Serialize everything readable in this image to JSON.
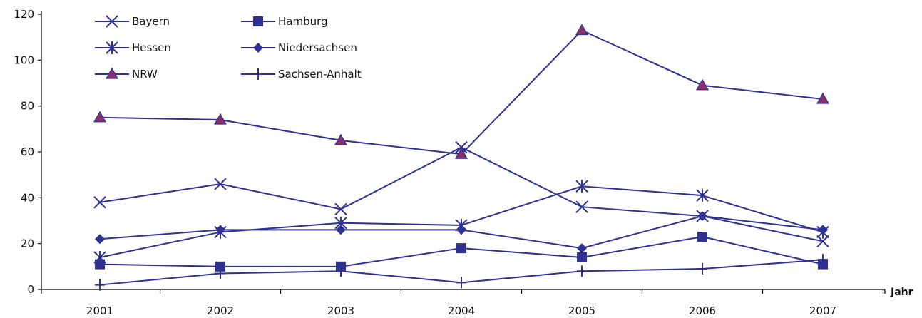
{
  "chart_data": {
    "type": "line",
    "title": "",
    "xlabel": "Jahr",
    "ylabel": "",
    "x": [
      "2001",
      "2002",
      "2003",
      "2004",
      "2005",
      "2006",
      "2007"
    ],
    "ylim": [
      0,
      120
    ],
    "yticks": [
      0,
      20,
      40,
      60,
      80,
      100,
      120
    ],
    "grid": false,
    "legend_position": "top-left",
    "line_color": "#2e3192",
    "marker_fill_nrw": "#8b2f6b",
    "series": [
      {
        "name": "Bayern",
        "marker": "x-icon",
        "values": [
          38,
          46,
          35,
          62,
          36,
          32,
          21
        ]
      },
      {
        "name": "Hamburg",
        "marker": "square-icon",
        "values": [
          11,
          10,
          10,
          18,
          14,
          23,
          11
        ]
      },
      {
        "name": "Hessen",
        "marker": "asterisk-icon",
        "values": [
          14,
          25,
          29,
          28,
          45,
          41,
          25
        ]
      },
      {
        "name": "Niedersachsen",
        "marker": "diamond-icon",
        "values": [
          22,
          26,
          26,
          26,
          18,
          32,
          26
        ]
      },
      {
        "name": "NRW",
        "marker": "triangle-icon",
        "values": [
          75,
          74,
          65,
          59,
          113,
          89,
          83
        ]
      },
      {
        "name": "Sachsen-Anhalt",
        "marker": "plus-icon",
        "values": [
          2,
          7,
          8,
          3,
          8,
          9,
          13
        ]
      }
    ]
  }
}
